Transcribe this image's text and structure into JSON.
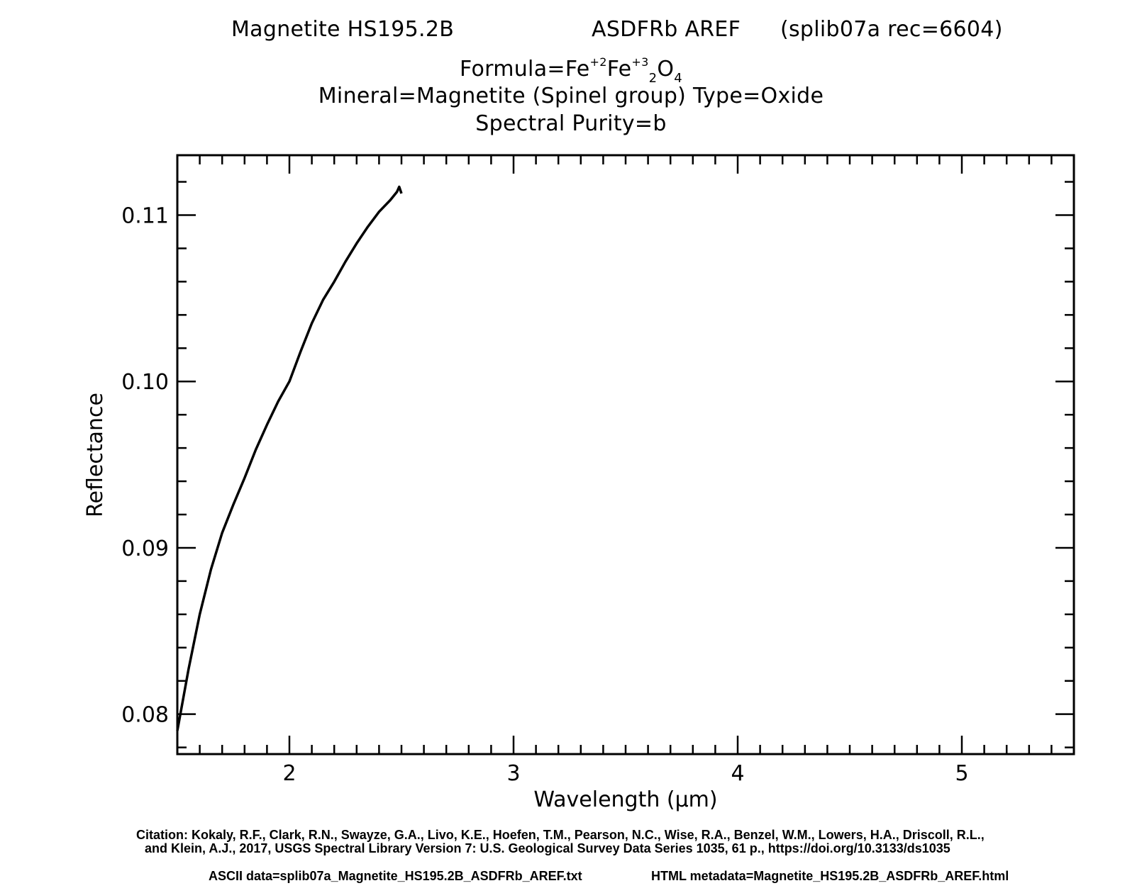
{
  "header": {
    "sample": "Magnetite HS195.2B",
    "spectrometer": "ASDFRb AREF",
    "record": "(splib07a rec=6604)",
    "formula_prefix": "Formula=",
    "formula": [
      {
        "t": "Fe",
        "k": "n"
      },
      {
        "t": "+2",
        "k": "sup"
      },
      {
        "t": "Fe",
        "k": "n"
      },
      {
        "t": "+3",
        "k": "sup"
      },
      {
        "t": "2",
        "k": "sub"
      },
      {
        "t": "O",
        "k": "n"
      },
      {
        "t": "4",
        "k": "sub"
      }
    ],
    "mineral_line": "Mineral=Magnetite (Spinel group)  Type=Oxide",
    "purity_line": "Spectral Purity=b"
  },
  "chart_data": {
    "type": "line",
    "xlabel": "Wavelength (μm)",
    "ylabel": "Reflectance",
    "xlim": [
      1.5,
      5.5
    ],
    "ylim": [
      0.0776,
      0.1136
    ],
    "x_ticks": [
      2,
      3,
      4,
      5
    ],
    "x_tick_labels": [
      "2",
      "3",
      "4",
      "5"
    ],
    "y_ticks": [
      0.08,
      0.09,
      0.1,
      0.11
    ],
    "y_tick_labels": [
      "0.08",
      "0.09",
      "0.10",
      "0.11"
    ],
    "grid": false,
    "series": [
      {
        "color": "#000000",
        "x": [
          1.5,
          1.55,
          1.6,
          1.65,
          1.7,
          1.75,
          1.8,
          1.85,
          1.9,
          1.95,
          2.0,
          2.05,
          2.1,
          2.15,
          2.2,
          2.25,
          2.3,
          2.35,
          2.4,
          2.45,
          2.48,
          2.49,
          2.5
        ],
        "y": [
          0.079,
          0.0827,
          0.086,
          0.0887,
          0.0909,
          0.0926,
          0.0942,
          0.0959,
          0.0974,
          0.0988,
          0.1,
          0.1018,
          0.1035,
          0.1049,
          0.106,
          0.1072,
          0.1083,
          0.1093,
          0.1102,
          0.1109,
          0.1114,
          0.1117,
          0.1113
        ]
      }
    ]
  },
  "footer": {
    "citation_line1": "Citation: Kokaly, R.F., Clark, R.N., Swayze, G.A., Livo, K.E., Hoefen, T.M., Pearson, N.C., Wise, R.A., Benzel, W.M., Lowers, H.A., Driscoll, R.L.,",
    "citation_line2": "and Klein, A.J., 2017, USGS Spectral Library Version 7: U.S. Geological Survey Data Series 1035, 61 p., https://doi.org/10.3133/ds1035",
    "ascii_data": "ASCII data=splib07a_Magnetite_HS195.2B_ASDFRb_AREF.txt",
    "html_metadata": "HTML metadata=Magnetite_HS195.2B_ASDFRb_AREF.html"
  }
}
